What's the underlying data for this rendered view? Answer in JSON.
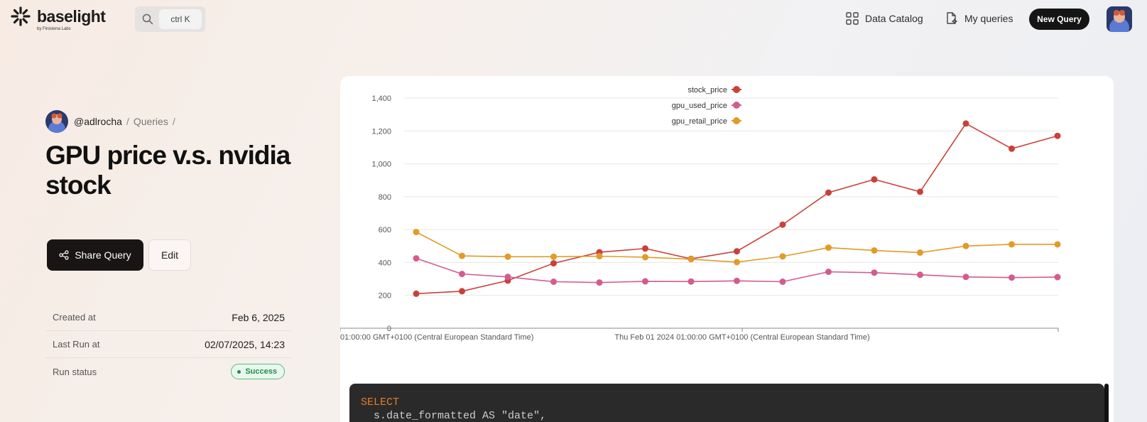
{
  "header": {
    "logo_text": "baselight",
    "logo_sub": "by Finisterra Labs",
    "search_shortcut": "ctrl K",
    "nav": [
      {
        "label": "Data Catalog",
        "icon": "grid-icon"
      },
      {
        "label": "My queries",
        "icon": "document-sparkle-icon"
      }
    ],
    "new_query_label": "New Query"
  },
  "breadcrumb": {
    "user": "@adlrocha",
    "section": "Queries",
    "sep": "/"
  },
  "page_title": "GPU price v.s. nvidia stock",
  "actions": {
    "share_label": "Share Query",
    "edit_label": "Edit"
  },
  "meta": [
    {
      "label": "Created at",
      "value": "Feb 6, 2025"
    },
    {
      "label": "Last Run at",
      "value": "02/07/2025, 14:23"
    },
    {
      "label": "Run status",
      "value": "Success"
    }
  ],
  "code": {
    "line1_keyword": "SELECT",
    "line2": "  s.date_formatted AS \"date\","
  },
  "colors": {
    "stock_price": "#c9413a",
    "gpu_used_price": "#d45b8f",
    "gpu_retail_price": "#e19b27",
    "status_success": "#1f8e48"
  },
  "chart_data": {
    "type": "line",
    "x_tick_labels": [
      "01:00:00 GMT+0100 (Central European Standard Time)",
      "Thu Feb 01 2024 01:00:00 GMT+0100 (Central European Standard Time)"
    ],
    "x_count": 15,
    "ylim": [
      0,
      1400
    ],
    "yticks": [
      "1,400",
      "1,200",
      "1,000",
      "800",
      "600",
      "400",
      "200",
      "0"
    ],
    "ytick_values": [
      1400,
      1200,
      1000,
      800,
      600,
      400,
      200,
      0
    ],
    "grid": true,
    "legend_position": "top-center",
    "series": [
      {
        "name": "stock_price",
        "values": [
          210,
          225,
          290,
          395,
          462,
          485,
          422,
          468,
          630,
          825,
          905,
          830,
          1245,
          1092,
          1170
        ]
      },
      {
        "name": "gpu_used_price",
        "values": [
          425,
          330,
          312,
          283,
          278,
          285,
          284,
          288,
          283,
          343,
          338,
          325,
          312,
          308,
          311
        ]
      },
      {
        "name": "gpu_retail_price",
        "values": [
          585,
          440,
          435,
          435,
          438,
          432,
          420,
          402,
          437,
          490,
          473,
          460,
          500,
          510,
          510
        ]
      }
    ]
  }
}
